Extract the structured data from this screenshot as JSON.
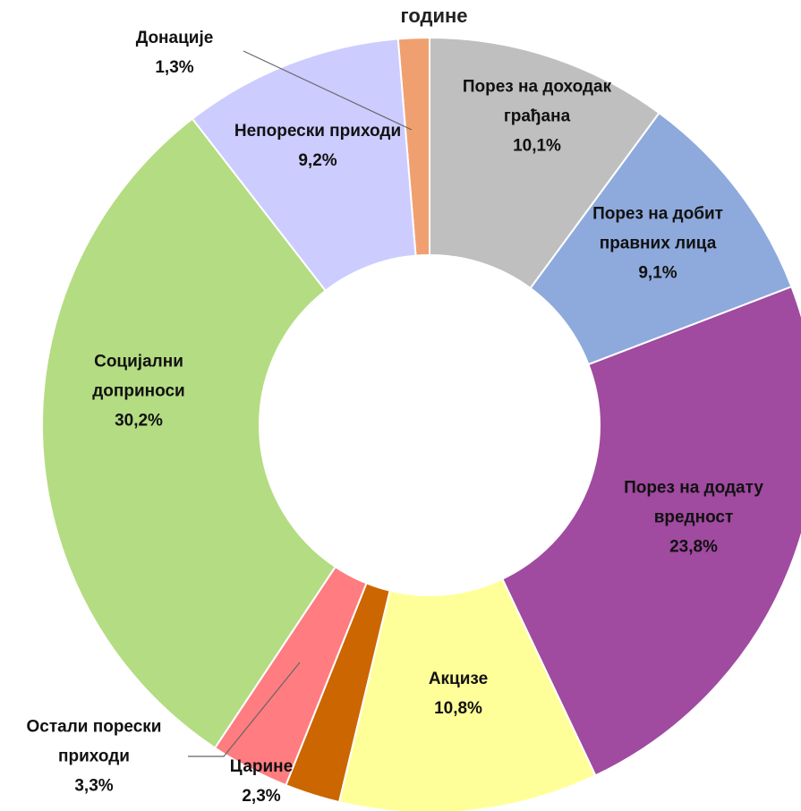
{
  "chart_data": {
    "type": "donut",
    "title": "године",
    "categories": [
      "Порез на доходак грађана",
      "Порез на добит правних лица",
      "Порез на додату вредност",
      "Акцизе",
      "Царине",
      "Остали порески приходи",
      "Социјални доприноси",
      "Непорески приходи",
      "Донације"
    ],
    "values": [
      10.1,
      9.1,
      23.8,
      10.8,
      2.3,
      3.3,
      30.2,
      9.2,
      1.3
    ],
    "value_labels": [
      "10,1%",
      "9,1%",
      "23,8%",
      "10,8%",
      "2,3%",
      "3,3%",
      "30,2%",
      "9,2%",
      "1,3%"
    ],
    "colors": [
      "#bfbfbf",
      "#8eaadc",
      "#a04aa0",
      "#ffff99",
      "#cc6600",
      "#ff7c80",
      "#b4dc82",
      "#ccccff",
      "#f0a070"
    ]
  }
}
